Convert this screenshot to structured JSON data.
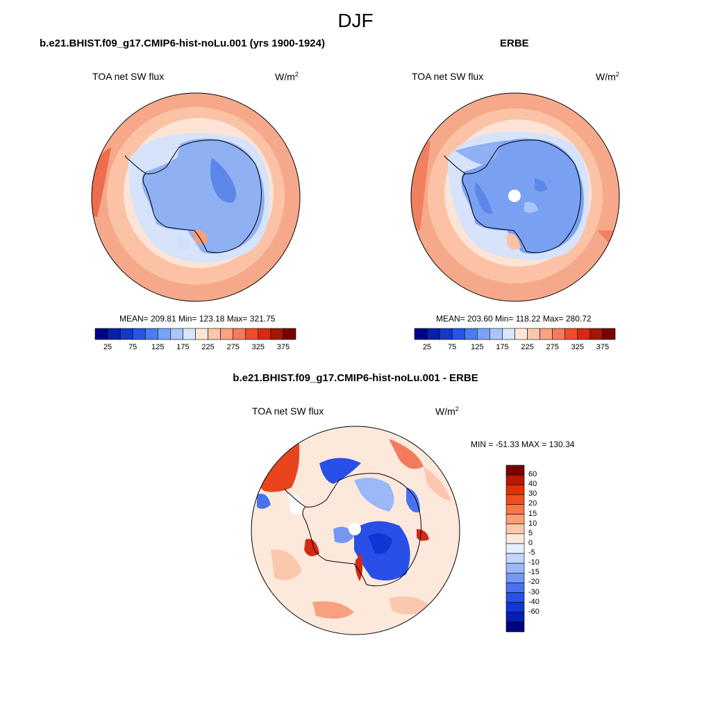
{
  "figure": {
    "main_title": "DJF",
    "panel1": {
      "title": "b.e21.BHIST.f09_g17.CMIP6-hist-noLu.001 (yrs 1900-1924)",
      "left_label": "TOA net SW flux",
      "units_base": "W/m",
      "units_exp": "2",
      "stats": "MEAN= 209.81  Min= 123.18  Max= 321.75"
    },
    "panel2": {
      "title": "ERBE",
      "left_label": "TOA net SW flux",
      "units_base": "W/m",
      "units_exp": "2",
      "stats": "MEAN= 203.60  Min= 118.22  Max= 280.72"
    },
    "panel3": {
      "title": "b.e21.BHIST.f09_g17.CMIP6-hist-noLu.001 - ERBE",
      "left_label": "TOA net SW flux",
      "units_base": "W/m",
      "units_exp": "2",
      "minmax": "MIN = -51.33 MAX = 130.34"
    }
  },
  "chart_data": [
    {
      "type": "heatmap",
      "projection": "south polar stereographic",
      "title": "b.e21.BHIST.f09_g17.CMIP6-hist-noLu.001 (yrs 1900-1924)",
      "variable": "TOA net SW flux",
      "units": "W/m2",
      "mean": 209.81,
      "min": 123.18,
      "max": 321.75,
      "colorbar": {
        "orientation": "horizontal",
        "colors": [
          "#00008b",
          "#0a1fa8",
          "#1638c8",
          "#2855e6",
          "#4a7df2",
          "#7aa2f7",
          "#aac5fa",
          "#d8e6fd",
          "#fde6d8",
          "#fbc7ad",
          "#f8a384",
          "#f47a5c",
          "#ee4c2c",
          "#d42a12",
          "#a31608",
          "#7a0000"
        ],
        "tick_labels": [
          "25",
          "75",
          "125",
          "175",
          "225",
          "275",
          "325",
          "375"
        ]
      }
    },
    {
      "type": "heatmap",
      "projection": "south polar stereographic",
      "title": "ERBE",
      "variable": "TOA net SW flux",
      "units": "W/m2",
      "mean": 203.6,
      "min": 118.22,
      "max": 280.72,
      "colorbar": {
        "orientation": "horizontal",
        "colors": [
          "#00008b",
          "#0a1fa8",
          "#1638c8",
          "#2855e6",
          "#4a7df2",
          "#7aa2f7",
          "#aac5fa",
          "#d8e6fd",
          "#fde6d8",
          "#fbc7ad",
          "#f8a384",
          "#f47a5c",
          "#ee4c2c",
          "#d42a12",
          "#a31608",
          "#7a0000"
        ],
        "tick_labels": [
          "25",
          "75",
          "125",
          "175",
          "225",
          "275",
          "325",
          "375"
        ]
      }
    },
    {
      "type": "heatmap",
      "projection": "south polar stereographic",
      "title": "b.e21.BHIST.f09_g17.CMIP6-hist-noLu.001 - ERBE",
      "variable": "TOA net SW flux",
      "units": "W/m2",
      "min": -51.33,
      "max": 130.34,
      "colorbar": {
        "orientation": "vertical",
        "colors": [
          "#7a0000",
          "#b51a00",
          "#dd3300",
          "#f24e1f",
          "#f9754a",
          "#fb9e78",
          "#fdc7ab",
          "#fde9dc",
          "#e6efff",
          "#c2d5fb",
          "#9bb8f8",
          "#7397f3",
          "#4b72ee",
          "#2850e8",
          "#1235d6",
          "#0520ae",
          "#000080"
        ],
        "tick_labels": [
          "60",
          "40",
          "30",
          "20",
          "15",
          "10",
          "5",
          "0",
          "-5",
          "-10",
          "-15",
          "-20",
          "-30",
          "-40",
          "-60"
        ]
      }
    }
  ]
}
